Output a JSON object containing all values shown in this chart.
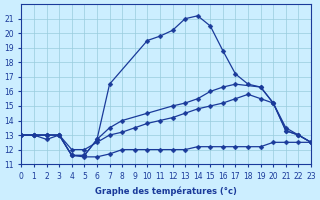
{
  "title": "Graphe des températures (°c)",
  "bg_color": "#cceeff",
  "grid_color": "#99ccdd",
  "line_color": "#1a3a9a",
  "xlim": [
    0,
    23
  ],
  "ylim": [
    11,
    22
  ],
  "xticks": [
    0,
    1,
    2,
    3,
    4,
    5,
    6,
    7,
    8,
    9,
    10,
    11,
    12,
    13,
    14,
    15,
    16,
    17,
    18,
    19,
    20,
    21,
    22,
    23
  ],
  "yticks": [
    11,
    12,
    13,
    14,
    15,
    16,
    17,
    18,
    19,
    20,
    21
  ],
  "series": {
    "line1": {
      "x": [
        0,
        1,
        2,
        3,
        4,
        5,
        6,
        7,
        10,
        11,
        12,
        13,
        14,
        15,
        16,
        17,
        18,
        19,
        20,
        21,
        22,
        23
      ],
      "y": [
        13,
        13,
        13,
        13,
        11.6,
        11.6,
        12.7,
        16.5,
        19.5,
        19.8,
        20.2,
        21.0,
        21.2,
        20.5,
        18.8,
        17.2,
        16.5,
        16.3,
        15.2,
        13.5,
        13.0,
        12.5
      ]
    },
    "line2": {
      "x": [
        0,
        1,
        2,
        3,
        4,
        5,
        6,
        7,
        8,
        10,
        12,
        13,
        14,
        15,
        16,
        17,
        19,
        20,
        21,
        22,
        23
      ],
      "y": [
        13,
        13,
        13,
        13,
        11.6,
        11.6,
        12.7,
        13.5,
        14.0,
        14.5,
        15.0,
        15.2,
        15.5,
        16.0,
        16.3,
        16.5,
        16.3,
        15.2,
        13.3,
        13.0,
        12.5
      ]
    },
    "line3": {
      "x": [
        0,
        1,
        2,
        3,
        4,
        5,
        6,
        7,
        8,
        9,
        10,
        11,
        12,
        13,
        14,
        15,
        16,
        17,
        18,
        19,
        20,
        21,
        22,
        23
      ],
      "y": [
        13,
        13,
        13,
        13,
        12.0,
        12.0,
        12.5,
        13.0,
        13.2,
        13.5,
        13.8,
        14.0,
        14.2,
        14.5,
        14.8,
        15.0,
        15.2,
        15.5,
        15.8,
        15.5,
        15.2,
        13.3,
        13.0,
        12.5
      ]
    },
    "line4": {
      "x": [
        0,
        1,
        2,
        3,
        4,
        5,
        6,
        7,
        8,
        9,
        10,
        11,
        12,
        13,
        14,
        15,
        16,
        17,
        18,
        19,
        20,
        21,
        22,
        23
      ],
      "y": [
        13,
        13,
        12.7,
        13,
        11.6,
        11.5,
        11.5,
        11.7,
        12.0,
        12.0,
        12.0,
        12.0,
        12.0,
        12.0,
        12.2,
        12.2,
        12.2,
        12.2,
        12.2,
        12.2,
        12.5,
        12.5,
        12.5,
        12.5
      ]
    }
  }
}
